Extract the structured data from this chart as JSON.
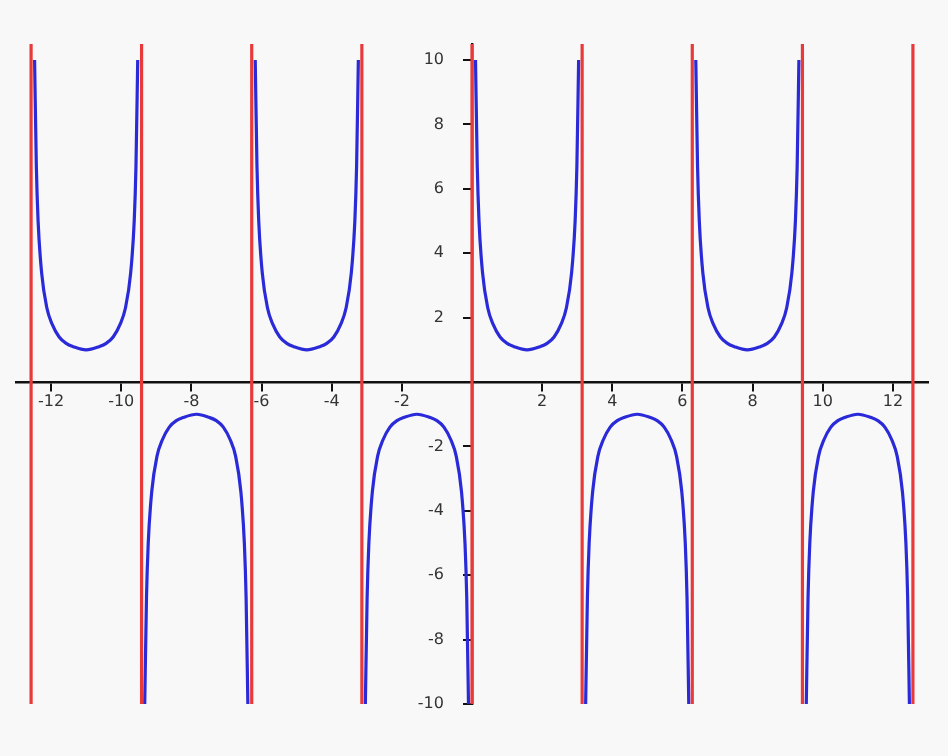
{
  "chart_data": {
    "type": "line",
    "xlim": [
      -13,
      13
    ],
    "ylim": [
      -10,
      10.5
    ],
    "xticks": [
      -12,
      -10,
      -8,
      -6,
      -4,
      -2,
      2,
      4,
      6,
      8,
      10,
      12
    ],
    "yticks": [
      -10,
      -8,
      -6,
      -4,
      -2,
      2,
      4,
      6,
      8,
      10
    ],
    "grid": false,
    "legend": false,
    "marker": "none",
    "line_style": "solid",
    "series": [
      {
        "color": "#2a2ad8",
        "x": [
          -12.47,
          -12.42,
          -12.37,
          -12.27,
          -12.12,
          -11.97,
          -11.77,
          -11.57,
          -11.37,
          -11.0,
          -10.63,
          -10.43,
          -10.23,
          -10.03,
          -9.88,
          -9.73,
          -9.63,
          -9.58,
          -9.53
        ],
        "values": [
          10,
          6.7,
          5,
          3.4,
          2.3,
          1.8,
          1.4,
          1.2,
          1.1,
          1,
          1.1,
          1.2,
          1.4,
          1.8,
          2.3,
          3.4,
          5,
          6.7,
          10
        ]
      },
      {
        "color": "#2a2ad8",
        "x": [
          -9.33,
          -9.28,
          -9.23,
          -9.13,
          -8.98,
          -8.83,
          -8.63,
          -8.43,
          -8.23,
          -7.85,
          -7.49,
          -7.29,
          -7.09,
          -6.89,
          -6.74,
          -6.59,
          -6.49,
          -6.44,
          -6.39
        ],
        "values": [
          -10,
          -6.7,
          -5,
          -3.4,
          -2.3,
          -1.8,
          -1.4,
          -1.2,
          -1.1,
          -1,
          -1.1,
          -1.2,
          -1.4,
          -1.8,
          -2.3,
          -3.4,
          -5,
          -6.7,
          -10
        ]
      },
      {
        "color": "#2a2ad8",
        "x": [
          -6.18,
          -6.13,
          -6.08,
          -5.98,
          -5.83,
          -5.68,
          -5.48,
          -5.28,
          -5.08,
          -4.71,
          -4.34,
          -4.14,
          -3.94,
          -3.74,
          -3.59,
          -3.44,
          -3.34,
          -3.29,
          -3.24
        ],
        "values": [
          10,
          6.7,
          5,
          3.4,
          2.3,
          1.8,
          1.4,
          1.2,
          1.1,
          1,
          1.1,
          1.2,
          1.4,
          1.8,
          2.3,
          3.4,
          5,
          6.7,
          10
        ]
      },
      {
        "color": "#2a2ad8",
        "x": [
          -3.04,
          -2.99,
          -2.94,
          -2.84,
          -2.69,
          -2.54,
          -2.34,
          -2.14,
          -1.94,
          -1.57,
          -1.2,
          -1.0,
          -0.8,
          -0.6,
          -0.45,
          -0.3,
          -0.2,
          -0.15,
          -0.1
        ],
        "values": [
          -10,
          -6.7,
          -5,
          -3.4,
          -2.3,
          -1.8,
          -1.4,
          -1.2,
          -1.1,
          -1,
          -1.1,
          -1.2,
          -1.4,
          -1.8,
          -2.3,
          -3.4,
          -5,
          -6.7,
          -10
        ]
      },
      {
        "color": "#2a2ad8",
        "x": [
          0.1,
          0.15,
          0.2,
          0.3,
          0.45,
          0.6,
          0.8,
          1.0,
          1.2,
          1.57,
          1.94,
          2.14,
          2.34,
          2.54,
          2.69,
          2.84,
          2.94,
          2.99,
          3.04
        ],
        "values": [
          10,
          6.7,
          5,
          3.4,
          2.3,
          1.8,
          1.4,
          1.2,
          1.1,
          1,
          1.1,
          1.2,
          1.4,
          1.8,
          2.3,
          3.4,
          5,
          6.7,
          10
        ]
      },
      {
        "color": "#2a2ad8",
        "x": [
          3.24,
          3.29,
          3.34,
          3.44,
          3.59,
          3.74,
          3.94,
          4.14,
          4.34,
          4.71,
          5.08,
          5.28,
          5.48,
          5.68,
          5.83,
          5.98,
          6.08,
          6.13,
          6.18
        ],
        "values": [
          -10,
          -6.7,
          -5,
          -3.4,
          -2.3,
          -1.8,
          -1.4,
          -1.2,
          -1.1,
          -1,
          -1.1,
          -1.2,
          -1.4,
          -1.8,
          -2.3,
          -3.4,
          -5,
          -6.7,
          -10
        ]
      },
      {
        "color": "#2a2ad8",
        "x": [
          6.38,
          6.43,
          6.48,
          6.58,
          6.73,
          6.88,
          7.08,
          7.28,
          7.48,
          7.85,
          8.22,
          8.42,
          8.62,
          8.82,
          8.97,
          9.12,
          9.22,
          9.27,
          9.32
        ],
        "values": [
          10,
          6.7,
          5,
          3.4,
          2.3,
          1.8,
          1.4,
          1.2,
          1.1,
          1,
          1.1,
          1.2,
          1.4,
          1.8,
          2.3,
          3.4,
          5,
          6.7,
          10
        ]
      },
      {
        "color": "#2a2ad8",
        "x": [
          9.53,
          9.58,
          9.63,
          9.73,
          9.88,
          10.03,
          10.23,
          10.43,
          10.63,
          11.0,
          11.37,
          11.57,
          11.77,
          11.97,
          12.12,
          12.27,
          12.37,
          12.42,
          12.47
        ],
        "values": [
          -10,
          -6.7,
          -5,
          -3.4,
          -2.3,
          -1.8,
          -1.4,
          -1.2,
          -1.1,
          -1,
          -1.1,
          -1.2,
          -1.4,
          -1.8,
          -2.3,
          -3.4,
          -5,
          -6.7,
          -10
        ]
      }
    ],
    "ref_lines": [
      {
        "axis": "x",
        "value": -12.57,
        "color": "#e83a3a"
      },
      {
        "axis": "x",
        "value": -9.42,
        "color": "#e83a3a"
      },
      {
        "axis": "x",
        "value": -6.28,
        "color": "#e83a3a"
      },
      {
        "axis": "x",
        "value": -3.14,
        "color": "#e83a3a"
      },
      {
        "axis": "x",
        "value": 0,
        "color": "#e83a3a"
      },
      {
        "axis": "x",
        "value": 3.14,
        "color": "#e83a3a"
      },
      {
        "axis": "x",
        "value": 6.28,
        "color": "#e83a3a"
      },
      {
        "axis": "x",
        "value": 9.42,
        "color": "#e83a3a"
      },
      {
        "axis": "x",
        "value": 12.57,
        "color": "#e83a3a"
      }
    ]
  }
}
